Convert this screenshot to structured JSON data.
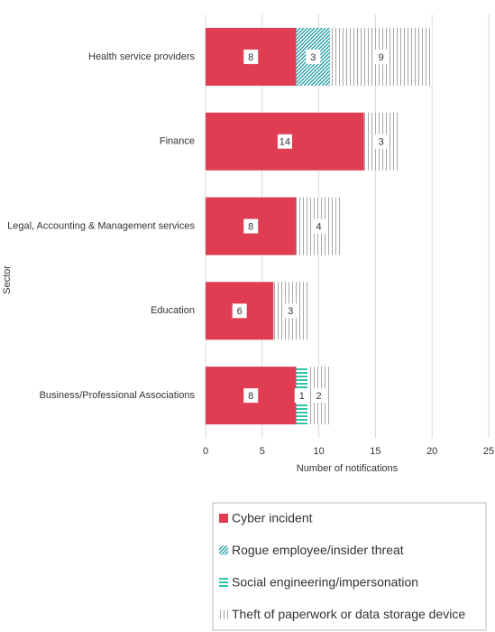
{
  "chart_data": {
    "type": "hbar-stacked",
    "categories": [
      "Health service providers",
      "Finance",
      "Legal, Accounting & Management services",
      "Education",
      "Business/Professional Associations"
    ],
    "series": [
      {
        "name": "Cyber incident",
        "color": "#e03c52",
        "pattern": "solid",
        "values": [
          8,
          14,
          8,
          6,
          8
        ]
      },
      {
        "name": "Rogue employee/insider threat",
        "color": "#1a9aa0",
        "pattern": "diagonal",
        "values": [
          3,
          null,
          null,
          null,
          null
        ]
      },
      {
        "name": "Social engineering/impersonation",
        "color": "#2ec4a8",
        "pattern": "horizontal",
        "values": [
          null,
          null,
          null,
          null,
          1
        ]
      },
      {
        "name": "Theft of paperwork or data storage device",
        "color": "#a8a8a8",
        "pattern": "vertical",
        "values": [
          9,
          3,
          4,
          3,
          2
        ]
      }
    ],
    "xlabel": "Number of notifications",
    "ylabel": "Sector",
    "xlim": [
      0,
      25
    ],
    "xticks": [
      0,
      5,
      10,
      15,
      20,
      25
    ],
    "grid": true
  }
}
